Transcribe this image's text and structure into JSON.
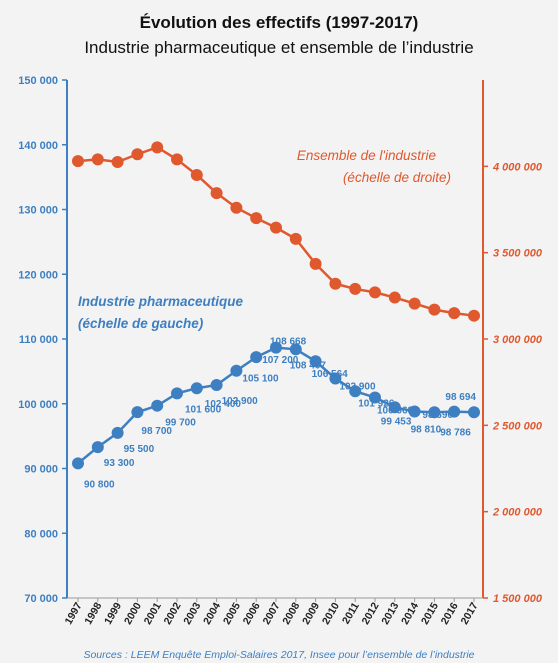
{
  "chart_data": {
    "type": "line",
    "title": "Évolution des effectifs (1997-2017)",
    "subtitle": "Industrie pharmaceutique et ensemble de l’industrie",
    "x": [
      "1997",
      "1998",
      "1999",
      "2000",
      "2001",
      "2002",
      "2003",
      "2004",
      "2005",
      "2006",
      "2007",
      "2008",
      "2009",
      "2010",
      "2011",
      "2012",
      "2013",
      "2014",
      "2015",
      "2016",
      "2017"
    ],
    "y_left": {
      "ylim": [
        70000,
        150000
      ],
      "ticks": [
        "70 000",
        "80 000",
        "90 000",
        "100 000",
        "110 000",
        "120 000",
        "130 000",
        "140 000",
        "150 000"
      ]
    },
    "y_right": {
      "ylim": [
        1500000,
        4500000
      ],
      "ticks": [
        "1 500 000",
        "2 000 000",
        "2 500 000",
        "3 000 000",
        "3 500 000",
        "4 000 000"
      ]
    },
    "series": [
      {
        "name": "Industrie pharmaceutique",
        "name_line2": "(échelle de gauche)",
        "axis": "left",
        "color": "#3d7fc1",
        "values": [
          90800,
          93300,
          95500,
          98700,
          99700,
          101600,
          102400,
          102900,
          105100,
          107200,
          108668,
          108407,
          106564,
          103900,
          101926,
          100968,
          99453,
          98810,
          98690,
          98786,
          98694
        ],
        "labels": [
          "90 800",
          "93 300",
          "95 500",
          "98 700",
          "99 700",
          "101 600",
          "102 400",
          "102 900",
          "105 100",
          "107 200",
          "108 668",
          "108 407",
          "106 564",
          "103 900",
          "101 926",
          "100 968",
          "99 453",
          "98 810",
          "98 690",
          "98 786",
          "98 694"
        ]
      },
      {
        "name": "Ensemble de l'industrie",
        "name_line2": "(échelle de droite)",
        "axis": "right",
        "color": "#e0582e",
        "values": [
          4030000,
          4040000,
          4025000,
          4070000,
          4110000,
          4040000,
          3950000,
          3845000,
          3760000,
          3700000,
          3645000,
          3580000,
          3435000,
          3320000,
          3290000,
          3270000,
          3240000,
          3205000,
          3170000,
          3150000,
          3135000
        ]
      }
    ]
  },
  "source": "Sources : LEEM Enquête Emploi-Salaires 2017, Insee pour l’ensemble de l’industrie"
}
